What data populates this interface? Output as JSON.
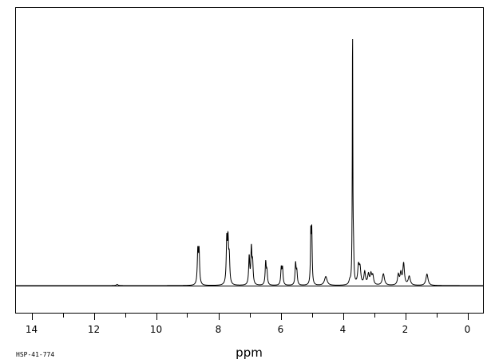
{
  "chart_data": {
    "type": "line",
    "xlabel": "ppm",
    "xlim": [
      14.5,
      -0.5
    ],
    "x_ticks": [
      {
        "value": 14,
        "label": "14"
      },
      {
        "value": 12,
        "label": "12"
      },
      {
        "value": 10,
        "label": "10"
      },
      {
        "value": 8,
        "label": "8"
      },
      {
        "value": 6,
        "label": "6"
      },
      {
        "value": 4,
        "label": "4"
      },
      {
        "value": 2,
        "label": "2"
      },
      {
        "value": 0,
        "label": "0"
      }
    ],
    "x_minor_step": 1,
    "ylim": [
      -0.12,
      1.0
    ],
    "baseline": 0,
    "grid": false,
    "legend": "none",
    "peaks": [
      {
        "ppm": 11.25,
        "height": 0.005,
        "width": 0.03
      },
      {
        "ppm": 8.66,
        "height": 0.13,
        "width": 0.02
      },
      {
        "ppm": 8.62,
        "height": 0.13,
        "width": 0.02
      },
      {
        "ppm": 7.73,
        "height": 0.17,
        "width": 0.02
      },
      {
        "ppm": 7.69,
        "height": 0.16,
        "width": 0.02
      },
      {
        "ppm": 7.65,
        "height": 0.1,
        "width": 0.02
      },
      {
        "ppm": 7.01,
        "height": 0.11,
        "width": 0.02
      },
      {
        "ppm": 6.94,
        "height": 0.14,
        "width": 0.02
      },
      {
        "ppm": 6.9,
        "height": 0.08,
        "width": 0.02
      },
      {
        "ppm": 6.48,
        "height": 0.09,
        "width": 0.02
      },
      {
        "ppm": 6.44,
        "height": 0.05,
        "width": 0.02
      },
      {
        "ppm": 5.98,
        "height": 0.065,
        "width": 0.02
      },
      {
        "ppm": 5.94,
        "height": 0.065,
        "width": 0.02
      },
      {
        "ppm": 5.52,
        "height": 0.085,
        "width": 0.02
      },
      {
        "ppm": 5.48,
        "height": 0.05,
        "width": 0.02
      },
      {
        "ppm": 5.03,
        "height": 0.2,
        "width": 0.015
      },
      {
        "ppm": 5.0,
        "height": 0.2,
        "width": 0.015
      },
      {
        "ppm": 4.55,
        "height": 0.035,
        "width": 0.05
      },
      {
        "ppm": 3.78,
        "height": 0.015,
        "width": 0.03
      },
      {
        "ppm": 3.69,
        "height": 1.0,
        "width": 0.01
      },
      {
        "ppm": 3.66,
        "height": 0.11,
        "width": 0.015
      },
      {
        "ppm": 3.5,
        "height": 0.07,
        "width": 0.03
      },
      {
        "ppm": 3.45,
        "height": 0.06,
        "width": 0.03
      },
      {
        "ppm": 3.3,
        "height": 0.05,
        "width": 0.03
      },
      {
        "ppm": 3.18,
        "height": 0.04,
        "width": 0.03
      },
      {
        "ppm": 3.1,
        "height": 0.04,
        "width": 0.03
      },
      {
        "ppm": 3.04,
        "height": 0.035,
        "width": 0.03
      },
      {
        "ppm": 2.7,
        "height": 0.045,
        "width": 0.04
      },
      {
        "ppm": 2.22,
        "height": 0.04,
        "width": 0.03
      },
      {
        "ppm": 2.14,
        "height": 0.045,
        "width": 0.03
      },
      {
        "ppm": 2.05,
        "height": 0.085,
        "width": 0.03
      },
      {
        "ppm": 1.87,
        "height": 0.035,
        "width": 0.04
      },
      {
        "ppm": 1.3,
        "height": 0.045,
        "width": 0.04
      }
    ]
  },
  "footer": {
    "code": "HSP-41-774"
  },
  "colors": {
    "line": "#000000",
    "background": "#ffffff"
  }
}
